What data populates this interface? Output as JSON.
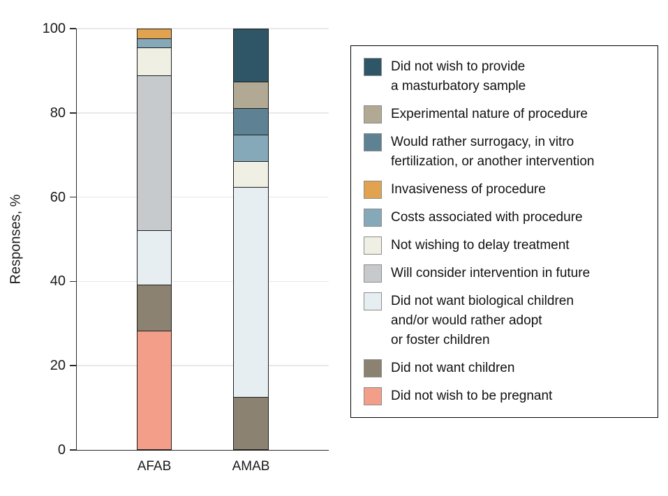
{
  "chart_data": {
    "type": "bar",
    "subtype": "stacked-percent",
    "title": "",
    "xlabel": "",
    "ylabel": "Responses, %",
    "categories": [
      "AFAB",
      "AMAB"
    ],
    "ylim": [
      0,
      100
    ],
    "yticks": [
      0,
      20,
      40,
      60,
      80,
      100
    ],
    "grid": true,
    "legend_position": "right",
    "stack_order": "series listed from top of bar to bottom of bar",
    "series": [
      {
        "name": "Did not wish to provide a masturbatory sample",
        "legend_lines": [
          "Did not wish to provide",
          "a masturbatory sample"
        ],
        "color": "#2F5666",
        "values": [
          0,
          12.5
        ]
      },
      {
        "name": "Experimental nature of procedure",
        "legend_lines": [
          "Experimental nature of procedure"
        ],
        "color": "#B2A995",
        "values": [
          0,
          6.3
        ]
      },
      {
        "name": "Would rather surrogacy, in vitro fertilization, or another intervention",
        "legend_lines": [
          "Would rather surrogacy, in vitro",
          "fertilization, or another intervention"
        ],
        "color": "#5E8293",
        "values": [
          0,
          6.3
        ]
      },
      {
        "name": "Invasiveness of procedure",
        "legend_lines": [
          "Invasiveness of procedure"
        ],
        "color": "#E2A351",
        "values": [
          2.2,
          0
        ]
      },
      {
        "name": "Costs associated with procedure",
        "legend_lines": [
          "Costs associated with procedure"
        ],
        "color": "#86A9BA",
        "values": [
          2.2,
          6.3
        ]
      },
      {
        "name": "Not wishing to delay treatment",
        "legend_lines": [
          "Not wishing to delay treatment"
        ],
        "color": "#EFEFE4",
        "values": [
          6.5,
          6.3
        ]
      },
      {
        "name": "Will consider intervention in future",
        "legend_lines": [
          "Will consider intervention in future"
        ],
        "color": "#C7CACC",
        "values": [
          37.0,
          0
        ]
      },
      {
        "name": "Did not want biological children and/or would rather adopt or foster children",
        "legend_lines": [
          "Did not want biological children",
          "and/or would rather adopt",
          "or foster children"
        ],
        "color": "#E7EEF2",
        "values": [
          13.0,
          50.0
        ]
      },
      {
        "name": "Did not want children",
        "legend_lines": [
          "Did not want children"
        ],
        "color": "#8B8272",
        "values": [
          10.9,
          12.5
        ]
      },
      {
        "name": "Did not wish to be pregnant",
        "legend_lines": [
          "Did not wish to be pregnant"
        ],
        "color": "#F39E89",
        "values": [
          28.3,
          0
        ]
      }
    ]
  },
  "layout_colors": {
    "axis": "#2a2a2a",
    "gridline": "#e8e8e8",
    "segment_border": "#1d1d1d"
  }
}
